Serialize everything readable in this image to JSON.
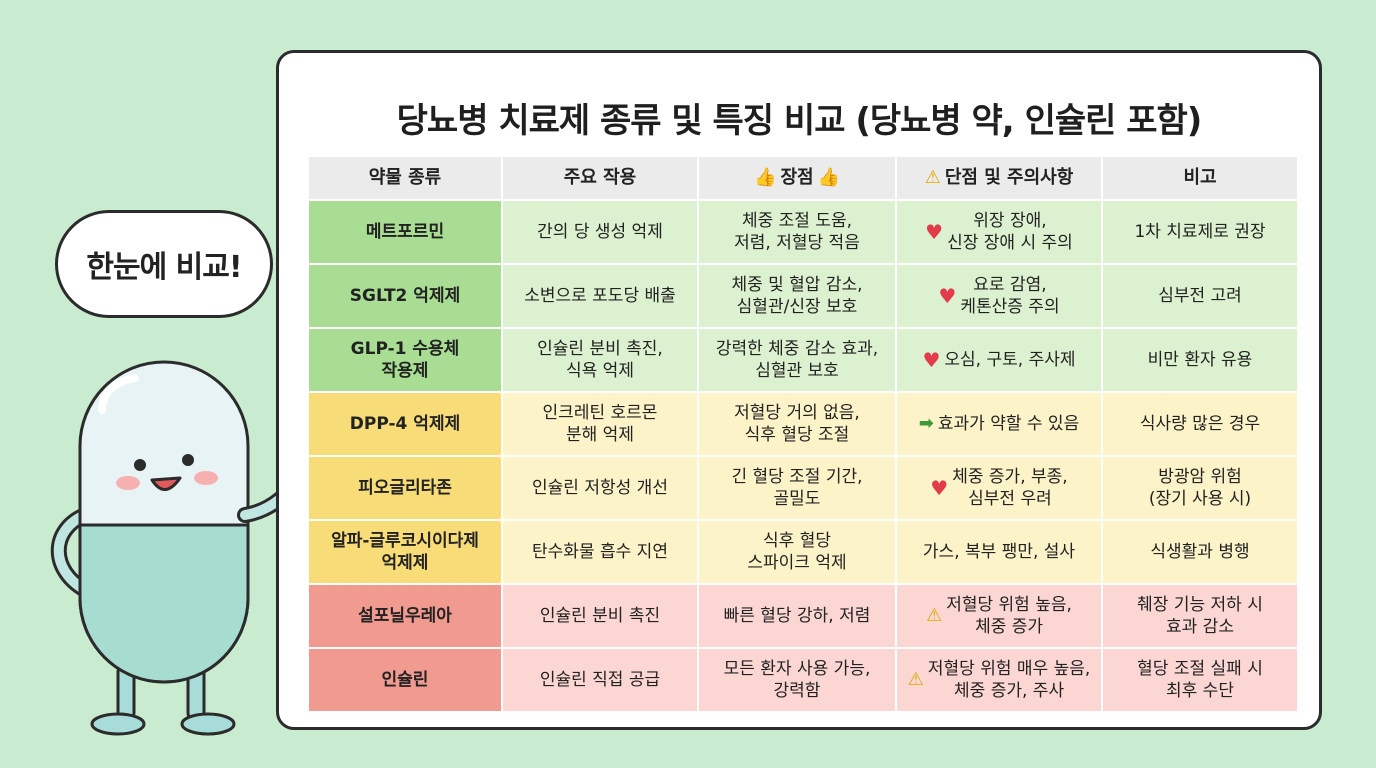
{
  "title": "당뇨병 치료제 종류 및 특징 비교 (당뇨병 약, 인슐린 포함)",
  "bubble": "한눈에 비교!",
  "headers": {
    "drug": "약물 종류",
    "action": "주요 작용",
    "pros": "장점",
    "cons": "단점 및 주의사항",
    "note": "비고"
  },
  "rows": [
    {
      "drug": "메트포르민",
      "action": "간의 당 생성 억제",
      "pros": "체중 조절 도움,\n저렴, 저혈당 적음",
      "cons_icon": "heart-icon",
      "cons": "위장 장애,\n신장 장애 시 주의",
      "note": "1차 치료제로 권장",
      "color": "green"
    },
    {
      "drug": "SGLT2 억제제",
      "action": "소변으로 포도당 배출",
      "pros": "체중 및 혈압 감소,\n심혈관/신장 보호",
      "cons_icon": "heart-icon",
      "cons": "요로 감염,\n케톤산증 주의",
      "note": "심부전 고려",
      "color": "green"
    },
    {
      "drug": "GLP-1 수용체\n작용제",
      "action": "인슐린 분비 촉진,\n식욕 억제",
      "pros": "강력한 체중 감소 효과,\n심혈관 보호",
      "cons_icon": "heart-icon",
      "cons": "오심, 구토, 주사제",
      "note": "비만 환자 유용",
      "color": "green"
    },
    {
      "drug": "DPP-4 억제제",
      "action": "인크레틴 호르몬\n분해 억제",
      "pros": "저혈당 거의 없음,\n식후 혈당 조절",
      "cons_icon": "arrow-icon",
      "cons": "효과가 약할 수 있음",
      "note": "식사량 많은 경우",
      "color": "yellow"
    },
    {
      "drug": "피오글리타존",
      "action": "인슐린 저항성 개선",
      "pros": "긴 혈당 조절 기간,\n골밀도",
      "cons_icon": "heart-icon",
      "cons": "체중 증가, 부종,\n심부전 우려",
      "note": "방광암 위험\n(장기 사용 시)",
      "color": "yellow"
    },
    {
      "drug": "알파-글루코시이다제\n억제제",
      "action": "탄수화물 흡수 지연",
      "pros": "식후 혈당\n스파이크 억제",
      "cons_icon": "",
      "cons": "가스, 복부 팽만, 설사",
      "note": "식생활과 병행",
      "color": "yellow"
    },
    {
      "drug": "설포닐우레아",
      "action": "인슐린 분비 촉진",
      "pros": "빠른 혈당 강하, 저렴",
      "cons_icon": "warning-icon",
      "cons": "저혈당 위험 높음,\n체중 증가",
      "note": "췌장 기능 저하 시\n효과 감소",
      "color": "red"
    },
    {
      "drug": "인슐린",
      "action": "인슐린 직접 공급",
      "pros": "모든 환자 사용 가능,\n강력함",
      "cons_icon": "warning-icon",
      "cons": "저혈당 위험 매우 높음,\n체중 증가, 주사",
      "note": "혈당 조절 실패 시\n최후 수단",
      "color": "red"
    }
  ],
  "colors": {
    "green_first": "#a8dd93",
    "green": "#dcf1cf",
    "yellow_first": "#f8dc78",
    "yellow": "#fdf3c8",
    "red_first": "#f09a90",
    "red": "#fbd6d2"
  }
}
